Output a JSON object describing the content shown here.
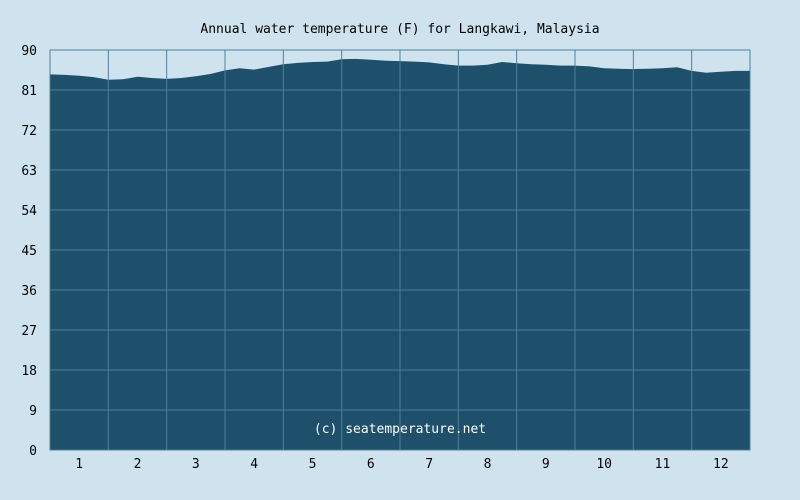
{
  "chart_data": {
    "type": "area",
    "title": "Annual water temperature (F) for Langkawi, Malaysia",
    "watermark": "(c) seatemperature.net",
    "xlabel": "",
    "ylabel": "",
    "x_ticks": [
      "1",
      "2",
      "3",
      "4",
      "5",
      "6",
      "7",
      "8",
      "9",
      "10",
      "11",
      "12"
    ],
    "y_ticks": [
      "0",
      "9",
      "18",
      "27",
      "36",
      "45",
      "54",
      "63",
      "72",
      "81",
      "90"
    ],
    "ylim": [
      0,
      90
    ],
    "xlim": [
      0.5,
      12.5
    ],
    "grid": true,
    "colors": {
      "fill": "#1e4f6b",
      "grid": "#4f7f99",
      "background": "#cfe3ef"
    },
    "series": [
      {
        "x": [
          0.5,
          0.75,
          1.0,
          1.25,
          1.5,
          1.75,
          2.0,
          2.25,
          2.5,
          2.75,
          3.0,
          3.25,
          3.5,
          3.75,
          4.0,
          4.25,
          4.5,
          4.75,
          5.0,
          5.25,
          5.5,
          5.75,
          6.0,
          6.25,
          6.5,
          6.75,
          7.0,
          7.25,
          7.5,
          7.75,
          8.0,
          8.25,
          8.5,
          8.75,
          9.0,
          9.25,
          9.5,
          9.75,
          10.0,
          10.25,
          10.5,
          10.75,
          11.0,
          11.25,
          11.5,
          11.75,
          12.0,
          12.25,
          12.5
        ],
        "values": [
          84.5,
          84.4,
          84.2,
          83.9,
          83.3,
          83.4,
          84.0,
          83.7,
          83.5,
          83.7,
          84.1,
          84.6,
          85.4,
          85.9,
          85.6,
          86.2,
          86.8,
          87.1,
          87.3,
          87.4,
          87.9,
          88.0,
          87.8,
          87.6,
          87.5,
          87.4,
          87.2,
          86.8,
          86.5,
          86.5,
          86.7,
          87.3,
          87.0,
          86.8,
          86.7,
          86.5,
          86.5,
          86.3,
          85.9,
          85.8,
          85.7,
          85.8,
          85.9,
          86.1,
          85.3,
          84.9,
          85.1,
          85.3,
          85.3
        ]
      }
    ]
  }
}
